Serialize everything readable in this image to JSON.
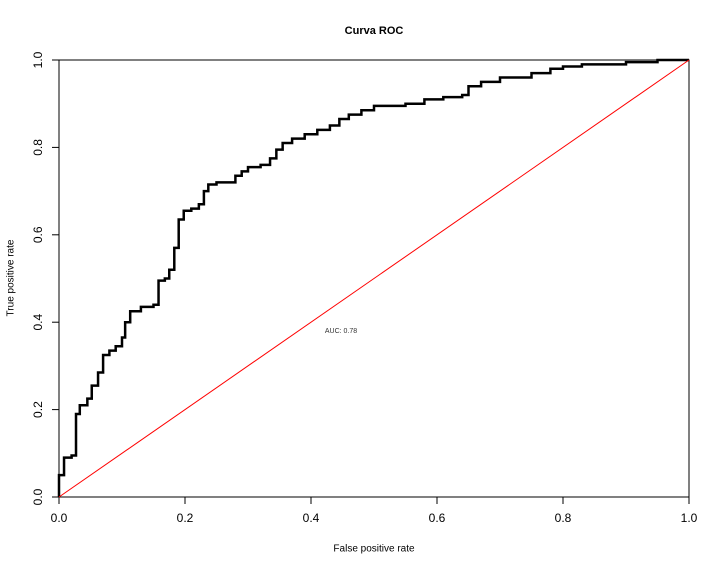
{
  "chart_data": {
    "type": "line",
    "title": "Curva ROC",
    "x_label": "False positive rate",
    "y_label": "True positive rate",
    "annotation": "AUC: 0.78",
    "xlim": [
      0,
      1
    ],
    "ylim": [
      0,
      1
    ],
    "xticks": [
      {
        "value": 0,
        "label": "0.0"
      },
      0.2,
      0.4,
      0.6,
      0.8,
      {
        "value": 1,
        "label": "1.0"
      }
    ],
    "yticks": [
      {
        "value": 0,
        "label": "0.0"
      },
      0.2,
      0.4,
      0.6,
      0.8,
      {
        "value": 1,
        "label": "1.0"
      }
    ],
    "series": [
      {
        "color": "#000000",
        "x": [
          0,
          0,
          0.008,
          0.008,
          0.02,
          0.02,
          0.027,
          0.027,
          0.033,
          0.033,
          0.045,
          0.045,
          0.052,
          0.052,
          0.062,
          0.062,
          0.07,
          0.07,
          0.08,
          0.08,
          0.09,
          0.09,
          0.1,
          0.1,
          0.105,
          0.105,
          0.113,
          0.113,
          0.13,
          0.13,
          0.15,
          0.15,
          0.158,
          0.158,
          0.168,
          0.168,
          0.175,
          0.175,
          0.183,
          0.183,
          0.19,
          0.19,
          0.198,
          0.198,
          0.21,
          0.21,
          0.222,
          0.222,
          0.23,
          0.23,
          0.237,
          0.237,
          0.25,
          0.25,
          0.28,
          0.28,
          0.29,
          0.29,
          0.3,
          0.3,
          0.32,
          0.32,
          0.335,
          0.335,
          0.345,
          0.345,
          0.355,
          0.355,
          0.37,
          0.37,
          0.39,
          0.39,
          0.41,
          0.41,
          0.43,
          0.43,
          0.445,
          0.445,
          0.46,
          0.46,
          0.48,
          0.48,
          0.5,
          0.5,
          0.55,
          0.55,
          0.58,
          0.58,
          0.61,
          0.61,
          0.64,
          0.64,
          0.65,
          0.65,
          0.67,
          0.67,
          0.7,
          0.7,
          0.75,
          0.75,
          0.78,
          0.78,
          0.8,
          0.8,
          0.83,
          0.83,
          0.9,
          0.9,
          0.95,
          0.95,
          1
        ],
        "values": [
          0,
          0.05,
          0.05,
          0.09,
          0.09,
          0.095,
          0.095,
          0.19,
          0.19,
          0.21,
          0.21,
          0.225,
          0.225,
          0.255,
          0.255,
          0.285,
          0.285,
          0.325,
          0.325,
          0.335,
          0.335,
          0.345,
          0.345,
          0.365,
          0.365,
          0.4,
          0.4,
          0.425,
          0.425,
          0.435,
          0.435,
          0.44,
          0.44,
          0.495,
          0.495,
          0.5,
          0.5,
          0.52,
          0.52,
          0.57,
          0.57,
          0.635,
          0.635,
          0.655,
          0.655,
          0.66,
          0.66,
          0.67,
          0.67,
          0.7,
          0.7,
          0.715,
          0.715,
          0.72,
          0.72,
          0.735,
          0.735,
          0.745,
          0.745,
          0.755,
          0.755,
          0.76,
          0.76,
          0.775,
          0.775,
          0.795,
          0.795,
          0.81,
          0.81,
          0.82,
          0.82,
          0.83,
          0.83,
          0.84,
          0.84,
          0.85,
          0.85,
          0.865,
          0.865,
          0.875,
          0.875,
          0.885,
          0.885,
          0.895,
          0.895,
          0.9,
          0.9,
          0.91,
          0.91,
          0.915,
          0.915,
          0.92,
          0.92,
          0.94,
          0.94,
          0.95,
          0.95,
          0.96,
          0.96,
          0.97,
          0.97,
          0.98,
          0.98,
          0.985,
          0.985,
          0.99,
          0.99,
          0.995,
          0.995,
          1,
          1
        ]
      },
      {
        "color": "#ff0000",
        "x": [
          0,
          1
        ],
        "values": [
          0,
          1
        ]
      }
    ]
  }
}
